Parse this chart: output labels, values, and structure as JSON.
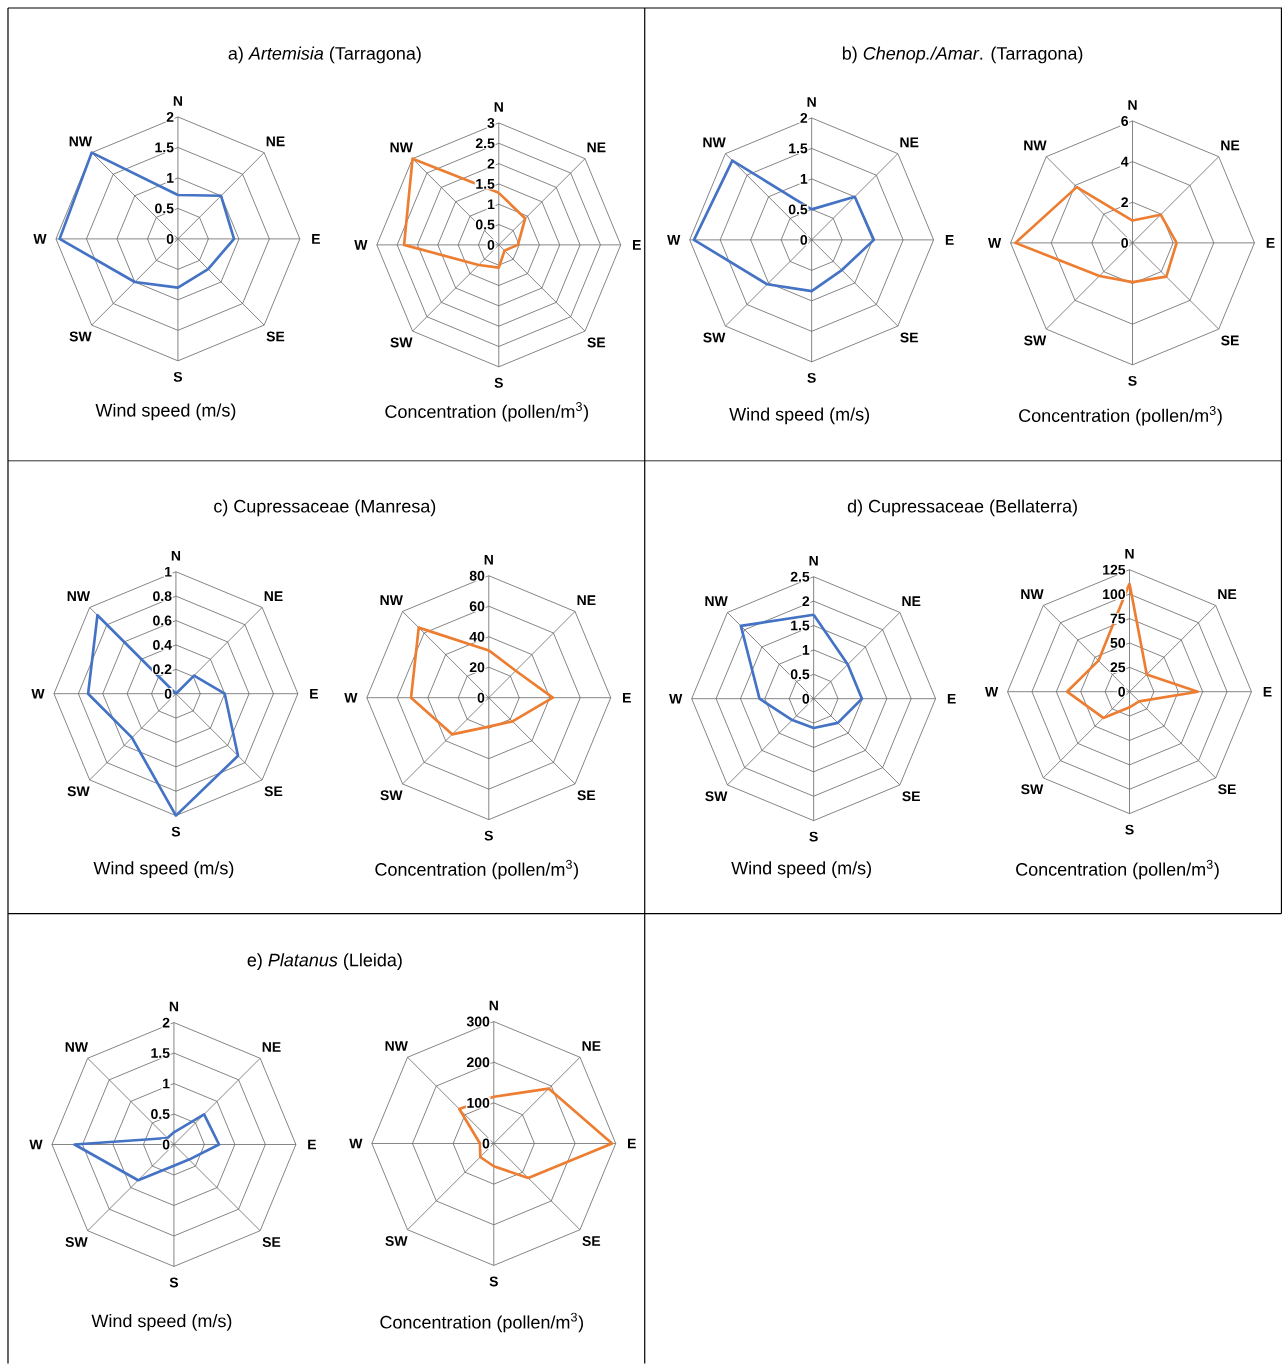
{
  "chart_data": [
    {
      "type": "radar",
      "title": "a) *Artemisia* (Tarragona)",
      "xlabel": "Wind speed (m/s)",
      "categories": [
        "N",
        "NE",
        "E",
        "SE",
        "S",
        "SW",
        "W",
        "NW"
      ],
      "series": [
        {
          "color": "#4472c4",
          "values": [
            0.72,
            1.0,
            0.92,
            0.7,
            0.8,
            1.0,
            1.94,
            2.0
          ]
        }
      ],
      "ylim": [
        0,
        2
      ],
      "yticks": [
        0,
        0.5,
        1,
        1.5,
        2
      ]
    },
    {
      "type": "radar",
      "xlabel": "Concentration (pollen/m$^{3}$)",
      "categories": [
        "N",
        "NE",
        "E",
        "SE",
        "S",
        "SW",
        "W",
        "NW"
      ],
      "series": [
        {
          "color": "#ed7d31",
          "values": [
            1.28,
            0.92,
            0.47,
            0.2,
            0.56,
            0.7,
            2.33,
            3.0
          ]
        }
      ],
      "ylim": [
        0,
        3
      ],
      "yticks": [
        0,
        0.5,
        1,
        1.5,
        2,
        2.5,
        3
      ]
    },
    {
      "type": "radar",
      "title": "b) *Chenop./Amar*. (Tarragona)",
      "xlabel": "Wind speed (m/s)",
      "categories": [
        "N",
        "NE",
        "E",
        "SE",
        "S",
        "SW",
        "W",
        "NW"
      ],
      "series": [
        {
          "color": "#4472c4",
          "values": [
            0.5,
            1.0,
            1.02,
            0.7,
            0.84,
            1.03,
            1.93,
            1.84
          ]
        }
      ],
      "ylim": [
        0,
        2
      ],
      "yticks": [
        0,
        0.5,
        1,
        1.5,
        2
      ]
    },
    {
      "type": "radar",
      "xlabel": "Concentration (pollen/m$^{3}$)",
      "categories": [
        "N",
        "NE",
        "E",
        "SE",
        "S",
        "SW",
        "W",
        "NW"
      ],
      "series": [
        {
          "color": "#ed7d31",
          "values": [
            1.1,
            1.96,
            2.17,
            2.35,
            1.93,
            2.3,
            5.76,
            3.88
          ]
        }
      ],
      "ylim": [
        0,
        6
      ],
      "yticks": [
        0,
        2,
        4,
        6
      ]
    },
    {
      "type": "radar",
      "title": "c) Cupressaceae (Manresa)",
      "xlabel": "Wind speed (m/s)",
      "categories": [
        "N",
        "NE",
        "E",
        "SE",
        "S",
        "SW",
        "W",
        "NW"
      ],
      "series": [
        {
          "color": "#4472c4",
          "values": [
            0,
            0.21,
            0.4,
            0.72,
            1.0,
            0.51,
            0.72,
            0.91
          ]
        }
      ],
      "ylim": [
        0,
        1
      ],
      "yticks": [
        0,
        0.2,
        0.4,
        0.6,
        0.8,
        1
      ]
    },
    {
      "type": "radar",
      "xlabel": "Concentration (pollen/m$^{3}$)",
      "categories": [
        "N",
        "NE",
        "E",
        "SE",
        "S",
        "SW",
        "W",
        "NW"
      ],
      "series": [
        {
          "color": "#ed7d31",
          "values": [
            31,
            25,
            42,
            22,
            19,
            34,
            51,
            65
          ]
        }
      ],
      "ylim": [
        0,
        80
      ],
      "yticks": [
        0,
        20,
        40,
        60,
        80
      ]
    },
    {
      "type": "radar",
      "title": "d) Cupressaceae (Bellaterra)",
      "xlabel": "Wind speed (m/s)",
      "categories": [
        "N",
        "NE",
        "E",
        "SE",
        "S",
        "SW",
        "W",
        "NW"
      ],
      "series": [
        {
          "color": "#4472c4",
          "values": [
            1.72,
            0.99,
            0.99,
            0.7,
            0.6,
            0.62,
            1.11,
            2.11
          ]
        }
      ],
      "ylim": [
        0,
        2.5
      ],
      "yticks": [
        0,
        0.5,
        1,
        1.5,
        2,
        2.5
      ]
    },
    {
      "type": "radar",
      "xlabel": "Concentration (pollen/m$^{3}$)",
      "categories": [
        "N",
        "NE",
        "E",
        "SE",
        "S",
        "SW",
        "W",
        "NW"
      ],
      "series": [
        {
          "color": "#ed7d31",
          "values": [
            111,
            25,
            70,
            14,
            16,
            38,
            64,
            45
          ]
        }
      ],
      "ylim": [
        0,
        125
      ],
      "yticks": [
        0,
        25,
        50,
        75,
        100,
        125
      ]
    },
    {
      "type": "radar",
      "title": "e) *Platanus* (Lleida)",
      "xlabel": "Wind speed (m/s)",
      "categories": [
        "N",
        "NE",
        "E",
        "SE",
        "S",
        "SW",
        "W",
        "NW"
      ],
      "series": [
        {
          "color": "#4472c4",
          "values": [
            0.2,
            0.7,
            0.74,
            0.35,
            0.35,
            0.83,
            1.63,
            0.15
          ]
        }
      ],
      "ylim": [
        0,
        2
      ],
      "yticks": [
        0,
        0.5,
        1,
        1.5,
        2
      ]
    },
    {
      "type": "radar",
      "xlabel": "Concentration (pollen/m$^{3}$)",
      "categories": [
        "N",
        "NE",
        "E",
        "SE",
        "S",
        "SW",
        "W",
        "NW"
      ],
      "series": [
        {
          "color": "#ed7d31",
          "values": [
            115,
            191,
            291,
            120,
            56,
            47,
            34,
            120
          ]
        }
      ],
      "ylim": [
        0,
        300
      ],
      "yticks": [
        0,
        100,
        200,
        300
      ]
    }
  ]
}
